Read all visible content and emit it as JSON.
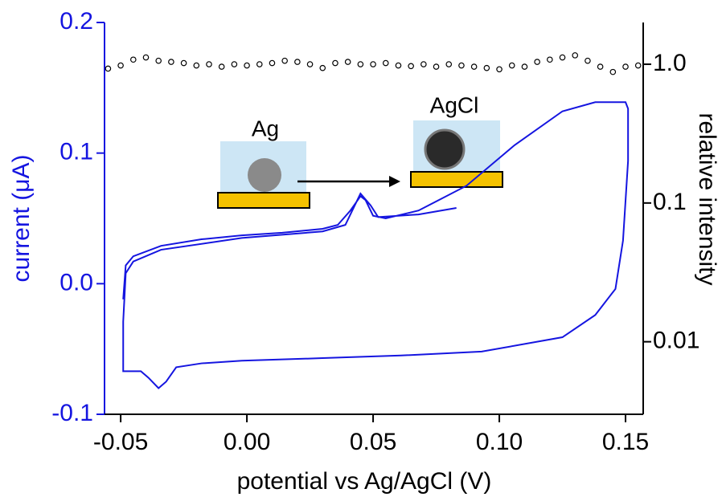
{
  "chart_data": {
    "type": "line",
    "xlabel": "potential vs Ag/AgCl  (V)",
    "ylabel": "current  (μA)",
    "y2label": "relative intensity",
    "annotations": [
      "Ag",
      "AgCl"
    ],
    "xlim": [
      -0.0564,
      0.157
    ],
    "ylim": [
      -0.1,
      0.2
    ],
    "y2lim": [
      0.003,
      2.0
    ],
    "y2scale": "log",
    "xticks": [
      {
        "value": -0.05,
        "label": "-0.05"
      },
      {
        "value": 0,
        "label": "0.00"
      },
      {
        "value": 0.05,
        "label": "0.05"
      },
      {
        "value": 0.1,
        "label": "0.10"
      },
      {
        "value": 0.15,
        "label": "0.15"
      }
    ],
    "yticks": [
      {
        "value": -0.1,
        "label": "-0.1"
      },
      {
        "value": 0,
        "label": "0.0"
      },
      {
        "value": 0.1,
        "label": "0.1"
      },
      {
        "value": 0.2,
        "label": "0.2"
      }
    ],
    "y2ticks": [
      {
        "value": 0.01,
        "label": "0.01"
      },
      {
        "value": 0.1,
        "label": "0.1"
      },
      {
        "value": 1,
        "label": "1.0"
      }
    ],
    "series": [
      {
        "color": "#1515e0",
        "marker": "none",
        "x": [
          -0.049,
          -0.048,
          -0.045,
          -0.034,
          -0.018,
          -0.002,
          0.014,
          0.03,
          0.036,
          0.041,
          0.045,
          0.047,
          0.05,
          0.055,
          0.068,
          0.087,
          0.106,
          0.125,
          0.138,
          0.15,
          0.151,
          0.151,
          0.149,
          0.146,
          0.138,
          0.125,
          0.093,
          0.061,
          0.03,
          -0.002,
          -0.018,
          -0.028,
          -0.032,
          -0.035,
          -0.039,
          -0.042,
          -0.049,
          -0.049,
          -0.048,
          -0.045,
          -0.034,
          -0.002,
          0.03,
          0.039,
          0.045,
          0.049,
          0.052,
          0.068,
          0.083
        ],
        "values": [
          -0.012,
          0.014,
          0.021,
          0.029,
          0.034,
          0.037,
          0.039,
          0.042,
          0.045,
          0.056,
          0.067,
          0.064,
          0.052,
          0.05,
          0.056,
          0.075,
          0.106,
          0.132,
          0.139,
          0.139,
          0.134,
          0.094,
          0.033,
          -0.004,
          -0.024,
          -0.041,
          -0.052,
          -0.055,
          -0.057,
          -0.059,
          -0.061,
          -0.064,
          -0.075,
          -0.08,
          -0.072,
          -0.067,
          -0.067,
          -0.029,
          0.008,
          0.017,
          0.026,
          0.035,
          0.04,
          0.045,
          0.069,
          0.06,
          0.051,
          0.053,
          0.058
        ]
      },
      {
        "color": "#000000",
        "marker": "open-circle",
        "axis": "y2",
        "x": [
          -0.055,
          -0.05,
          -0.045,
          -0.04,
          -0.035,
          -0.03,
          -0.025,
          -0.02,
          -0.015,
          -0.01,
          -0.005,
          0.0,
          0.005,
          0.01,
          0.015,
          0.02,
          0.025,
          0.03,
          0.035,
          0.04,
          0.045,
          0.05,
          0.055,
          0.06,
          0.065,
          0.07,
          0.075,
          0.08,
          0.085,
          0.09,
          0.095,
          0.1,
          0.105,
          0.11,
          0.115,
          0.12,
          0.125,
          0.13,
          0.135,
          0.14,
          0.145,
          0.15,
          0.155
        ],
        "values": [
          0.93,
          0.98,
          1.08,
          1.12,
          1.06,
          1.04,
          1.02,
          0.98,
          1.0,
          0.96,
          1.0,
          0.98,
          1.0,
          1.02,
          1.06,
          1.04,
          1.0,
          0.94,
          1.02,
          1.04,
          1.0,
          1.0,
          1.02,
          0.98,
          0.97,
          1.0,
          0.96,
          1.0,
          0.98,
          0.96,
          0.94,
          0.92,
          0.98,
          0.96,
          1.04,
          1.08,
          1.12,
          1.16,
          1.06,
          0.96,
          0.88,
          0.96,
          0.98
        ]
      }
    ]
  }
}
